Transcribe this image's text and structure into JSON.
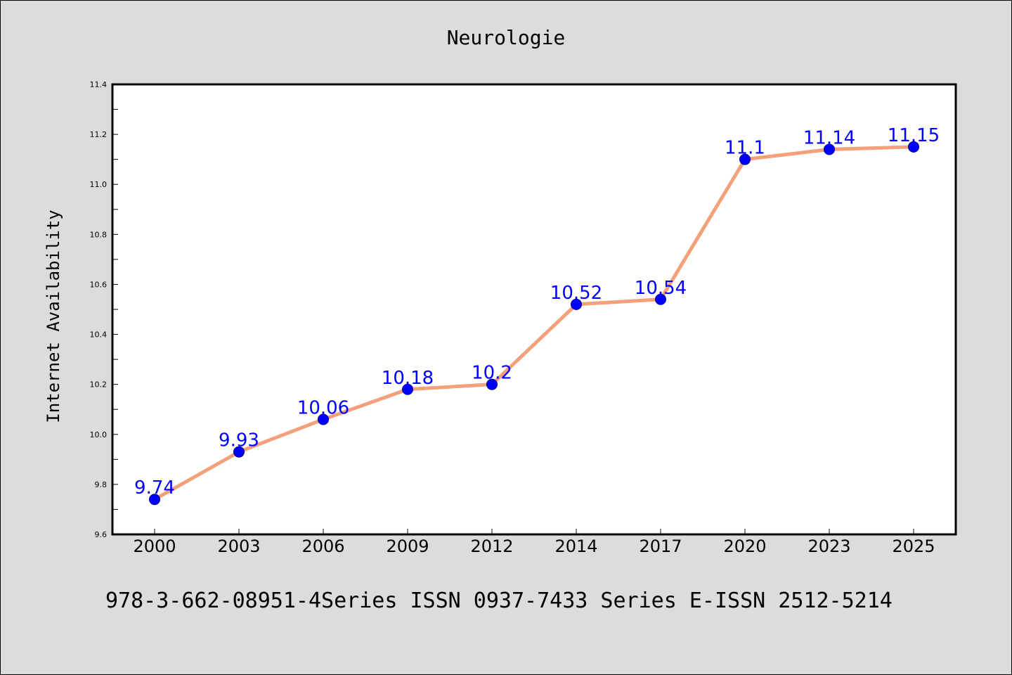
{
  "chart_data": {
    "type": "line",
    "title": "Neurologie",
    "xlabel": "",
    "ylabel": "Internet Availability",
    "categories": [
      "2000",
      "2003",
      "2006",
      "2009",
      "2012",
      "2014",
      "2017",
      "2020",
      "2023",
      "2025"
    ],
    "series": [
      {
        "values": [
          9.74,
          9.93,
          10.06,
          10.18,
          10.2,
          10.52,
          10.54,
          11.1,
          11.14,
          11.15
        ],
        "labels": [
          "9.74",
          "9.93",
          "10.06",
          "10.18",
          "10.2",
          "10.52",
          "10.54",
          "11.1",
          "11.14",
          "11.15"
        ]
      }
    ],
    "ylim": [
      9.6,
      11.4
    ],
    "yticks": [
      "9.6",
      "9.8",
      "10.0",
      "10.2",
      "10.4",
      "10.6",
      "10.8",
      "11.0",
      "11.2",
      "11.4"
    ],
    "line_color": "#f4a07a",
    "marker_color": "#0000ff",
    "label_color": "#0000ff",
    "grid": false,
    "legend": "none"
  },
  "footer": {
    "text": "978-3-662-08951-4Series ISSN 0937-7433 Series E-ISSN 2512-5214"
  }
}
